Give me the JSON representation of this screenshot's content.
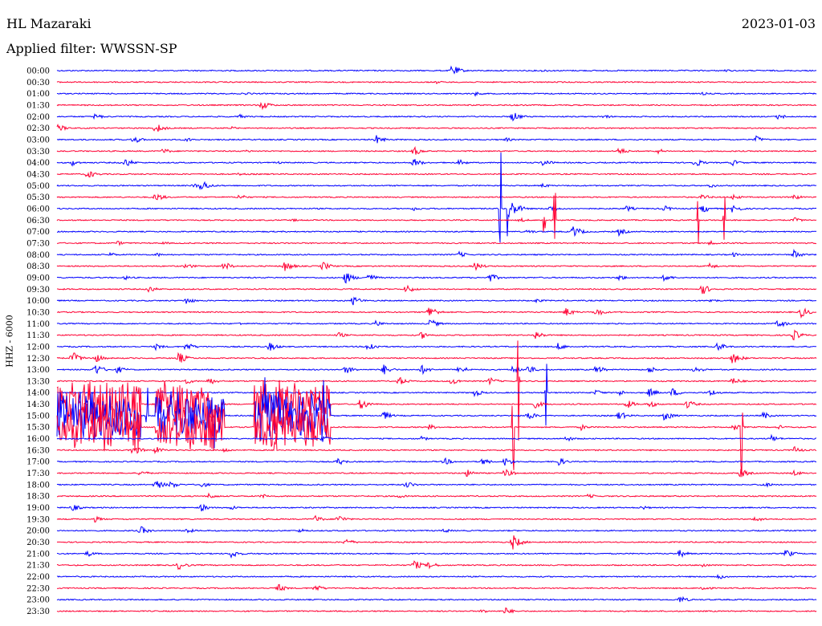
{
  "header": {
    "station": "HL Mazaraki",
    "date": "2023-01-03",
    "filter": "Applied filter: WWSSN-SP"
  },
  "chart_data": {
    "type": "line",
    "ylabel": "HHZ - 6000",
    "colors": [
      "#0000ff",
      "#ff0033"
    ],
    "rows": [
      "00:00",
      "00:30",
      "01:00",
      "01:30",
      "02:00",
      "02:30",
      "03:00",
      "03:30",
      "04:00",
      "04:30",
      "05:00",
      "05:30",
      "06:00",
      "06:30",
      "07:00",
      "07:30",
      "08:00",
      "08:30",
      "09:00",
      "09:30",
      "10:00",
      "10:30",
      "11:00",
      "11:30",
      "12:00",
      "12:30",
      "13:00",
      "13:30",
      "14:00",
      "14:30",
      "15:00",
      "15:30",
      "16:00",
      "16:30",
      "17:00",
      "17:30",
      "18:00",
      "18:30",
      "19:00",
      "19:30",
      "20:00",
      "20:30",
      "21:00",
      "21:30",
      "22:00",
      "22:30",
      "23:00",
      "23:30"
    ],
    "events": [
      [
        [
          0.52,
          8
        ],
        [
          0.64,
          2
        ],
        [
          0.88,
          2
        ]
      ],
      [
        [
          0.5,
          2
        ]
      ],
      [
        [
          0.25,
          2
        ],
        [
          0.55,
          3
        ],
        [
          0.85,
          2
        ]
      ],
      [
        [
          0.27,
          6
        ]
      ],
      [
        [
          0.05,
          4
        ],
        [
          0.24,
          3
        ],
        [
          0.6,
          7
        ],
        [
          0.72,
          3
        ],
        [
          0.95,
          4
        ]
      ],
      [
        [
          0.0,
          6
        ],
        [
          0.13,
          7
        ],
        [
          0.23,
          2
        ]
      ],
      [
        [
          0.1,
          6
        ],
        [
          0.17,
          3
        ],
        [
          0.42,
          6
        ],
        [
          0.59,
          3
        ],
        [
          0.92,
          5
        ]
      ],
      [
        [
          0.14,
          4
        ],
        [
          0.25,
          2
        ],
        [
          0.47,
          6
        ],
        [
          0.74,
          5
        ],
        [
          0.79,
          4
        ]
      ],
      [
        [
          0.02,
          4
        ],
        [
          0.09,
          6
        ],
        [
          0.29,
          2
        ],
        [
          0.47,
          6
        ],
        [
          0.53,
          4
        ],
        [
          0.64,
          5
        ],
        [
          0.84,
          6
        ],
        [
          0.89,
          4
        ]
      ],
      [
        [
          0.04,
          6
        ],
        [
          0.24,
          2
        ]
      ],
      [
        [
          0.18,
          3
        ],
        [
          0.19,
          8
        ],
        [
          0.64,
          3
        ],
        [
          0.86,
          3
        ]
      ],
      [
        [
          0.13,
          6
        ],
        [
          0.24,
          4
        ],
        [
          0.85,
          4
        ],
        [
          0.89,
          4
        ],
        [
          0.97,
          4
        ]
      ],
      [
        [
          0.47,
          3
        ],
        [
          0.6,
          10
        ],
        [
          0.65,
          5
        ],
        [
          0.75,
          4
        ],
        [
          0.8,
          4
        ],
        [
          0.85,
          6
        ],
        [
          0.89,
          6
        ]
      ],
      [
        [
          0.31,
          2
        ],
        [
          0.61,
          3
        ],
        [
          0.97,
          4
        ]
      ],
      [
        [
          0.62,
          3
        ],
        [
          0.68,
          8
        ],
        [
          0.74,
          5
        ]
      ],
      [
        [
          0.08,
          3
        ],
        [
          0.14,
          2
        ],
        [
          0.86,
          3
        ]
      ],
      [
        [
          0.07,
          3
        ],
        [
          0.13,
          3
        ],
        [
          0.53,
          4
        ],
        [
          0.89,
          3
        ],
        [
          0.97,
          6
        ]
      ],
      [
        [
          0.17,
          4
        ],
        [
          0.22,
          6
        ],
        [
          0.3,
          7
        ],
        [
          0.35,
          6
        ],
        [
          0.55,
          6
        ],
        [
          0.86,
          4
        ]
      ],
      [
        [
          0.09,
          3
        ],
        [
          0.38,
          8
        ],
        [
          0.41,
          6
        ],
        [
          0.57,
          6
        ],
        [
          0.74,
          4
        ],
        [
          0.8,
          5
        ]
      ],
      [
        [
          0.12,
          5
        ],
        [
          0.46,
          6
        ],
        [
          0.85,
          7
        ]
      ],
      [
        [
          0.17,
          5
        ],
        [
          0.39,
          6
        ],
        [
          0.63,
          3
        ],
        [
          0.86,
          3
        ]
      ],
      [
        [
          0.49,
          9
        ],
        [
          0.67,
          6
        ],
        [
          0.71,
          6
        ],
        [
          0.98,
          7
        ]
      ],
      [
        [
          0.24,
          2
        ],
        [
          0.42,
          4
        ],
        [
          0.49,
          7
        ],
        [
          0.95,
          6
        ]
      ],
      [
        [
          0.37,
          4
        ],
        [
          0.48,
          5
        ],
        [
          0.63,
          6
        ],
        [
          0.97,
          7
        ]
      ],
      [
        [
          0.13,
          4
        ],
        [
          0.17,
          6
        ],
        [
          0.28,
          6
        ],
        [
          0.41,
          7
        ],
        [
          0.66,
          5
        ],
        [
          0.87,
          6
        ]
      ],
      [
        [
          0.02,
          9
        ],
        [
          0.05,
          6
        ],
        [
          0.16,
          8
        ],
        [
          0.89,
          8
        ]
      ],
      [
        [
          0.05,
          8
        ],
        [
          0.08,
          5
        ],
        [
          0.38,
          6
        ],
        [
          0.43,
          7
        ],
        [
          0.48,
          6
        ],
        [
          0.53,
          6
        ],
        [
          0.6,
          5
        ],
        [
          0.62,
          6
        ],
        [
          0.71,
          6
        ],
        [
          0.78,
          5
        ],
        [
          0.84,
          5
        ]
      ],
      [
        [
          0.17,
          4
        ],
        [
          0.2,
          5
        ],
        [
          0.45,
          6
        ],
        [
          0.52,
          5
        ],
        [
          0.57,
          5
        ],
        [
          0.89,
          5
        ]
      ],
      [
        [
          0.55,
          5
        ],
        [
          0.71,
          4
        ],
        [
          0.74,
          4
        ],
        [
          0.78,
          6
        ],
        [
          0.81,
          6
        ],
        [
          0.86,
          5
        ]
      ],
      [
        [
          0.4,
          8
        ],
        [
          0.63,
          5
        ],
        [
          0.75,
          6
        ],
        [
          0.78,
          5
        ],
        [
          0.83,
          6
        ]
      ],
      [
        [
          0.43,
          6
        ],
        [
          0.62,
          6
        ],
        [
          0.74,
          6
        ],
        [
          0.8,
          7
        ],
        [
          0.93,
          5
        ]
      ],
      [
        [
          0.27,
          3
        ],
        [
          0.49,
          4
        ],
        [
          0.69,
          4
        ],
        [
          0.89,
          5
        ],
        [
          0.95,
          3
        ]
      ],
      [
        [
          0.35,
          5
        ],
        [
          0.48,
          3
        ],
        [
          0.67,
          4
        ],
        [
          0.94,
          5
        ]
      ],
      [
        [
          0.1,
          7
        ],
        [
          0.13,
          5
        ],
        [
          0.22,
          3
        ],
        [
          0.97,
          5
        ]
      ],
      [
        [
          0.37,
          5
        ],
        [
          0.51,
          5
        ],
        [
          0.56,
          5
        ],
        [
          0.59,
          6
        ],
        [
          0.66,
          6
        ]
      ],
      [
        [
          0.11,
          4
        ],
        [
          0.54,
          5
        ],
        [
          0.59,
          6
        ],
        [
          0.9,
          6
        ],
        [
          0.97,
          4
        ]
      ],
      [
        [
          0.13,
          7
        ],
        [
          0.15,
          5
        ],
        [
          0.19,
          4
        ],
        [
          0.46,
          5
        ],
        [
          0.93,
          4
        ]
      ],
      [
        [
          0.2,
          4
        ],
        [
          0.27,
          3
        ],
        [
          0.45,
          3
        ],
        [
          0.7,
          3
        ]
      ],
      [
        [
          0.02,
          5
        ],
        [
          0.19,
          5
        ],
        [
          0.23,
          3
        ],
        [
          0.77,
          3
        ]
      ],
      [
        [
          0.05,
          4
        ],
        [
          0.34,
          5
        ],
        [
          0.37,
          6
        ],
        [
          0.92,
          4
        ]
      ],
      [
        [
          0.11,
          6
        ],
        [
          0.17,
          4
        ],
        [
          0.32,
          3
        ],
        [
          0.51,
          3
        ]
      ],
      [
        [
          0.38,
          5
        ],
        [
          0.6,
          10
        ]
      ],
      [
        [
          0.04,
          4
        ],
        [
          0.23,
          6
        ],
        [
          0.82,
          5
        ],
        [
          0.96,
          6
        ]
      ],
      [
        [
          0.16,
          6
        ],
        [
          0.47,
          7
        ],
        [
          0.49,
          5
        ],
        [
          0.85,
          3
        ]
      ],
      [
        [
          0.87,
          4
        ]
      ],
      [
        [
          0.29,
          6
        ],
        [
          0.34,
          5
        ],
        [
          0.85,
          4
        ]
      ],
      [
        [
          0.82,
          5
        ]
      ],
      [
        [
          0.56,
          3
        ],
        [
          0.59,
          5
        ]
      ]
    ],
    "tremor_rows": [
      29,
      30,
      31
    ],
    "tremor_segments": [
      [
        0.0,
        0.11
      ],
      [
        0.13,
        0.22
      ],
      [
        0.26,
        0.36
      ]
    ],
    "spikes": [
      {
        "row": 12,
        "x": 0.583,
        "amp": 100
      },
      {
        "row": 12,
        "x": 0.594,
        "amp": 55
      },
      {
        "row": 13,
        "x": 0.642,
        "amp": 40
      },
      {
        "row": 13,
        "x": 0.655,
        "amp": 55
      },
      {
        "row": 13,
        "x": 0.845,
        "amp": 45
      },
      {
        "row": 13,
        "x": 0.878,
        "amp": 50
      },
      {
        "row": 27,
        "x": 0.608,
        "amp": 130
      },
      {
        "row": 28,
        "x": 0.644,
        "amp": 70
      },
      {
        "row": 30,
        "x": 0.118,
        "amp": 60
      },
      {
        "row": 30,
        "x": 0.208,
        "amp": 75
      },
      {
        "row": 30,
        "x": 0.275,
        "amp": 55
      },
      {
        "row": 30,
        "x": 0.351,
        "amp": 55
      },
      {
        "row": 31,
        "x": 0.6,
        "amp": 85
      },
      {
        "row": 31,
        "x": 0.902,
        "amp": 90
      },
      {
        "row": 33,
        "x": 0.287,
        "amp": 55
      }
    ]
  }
}
